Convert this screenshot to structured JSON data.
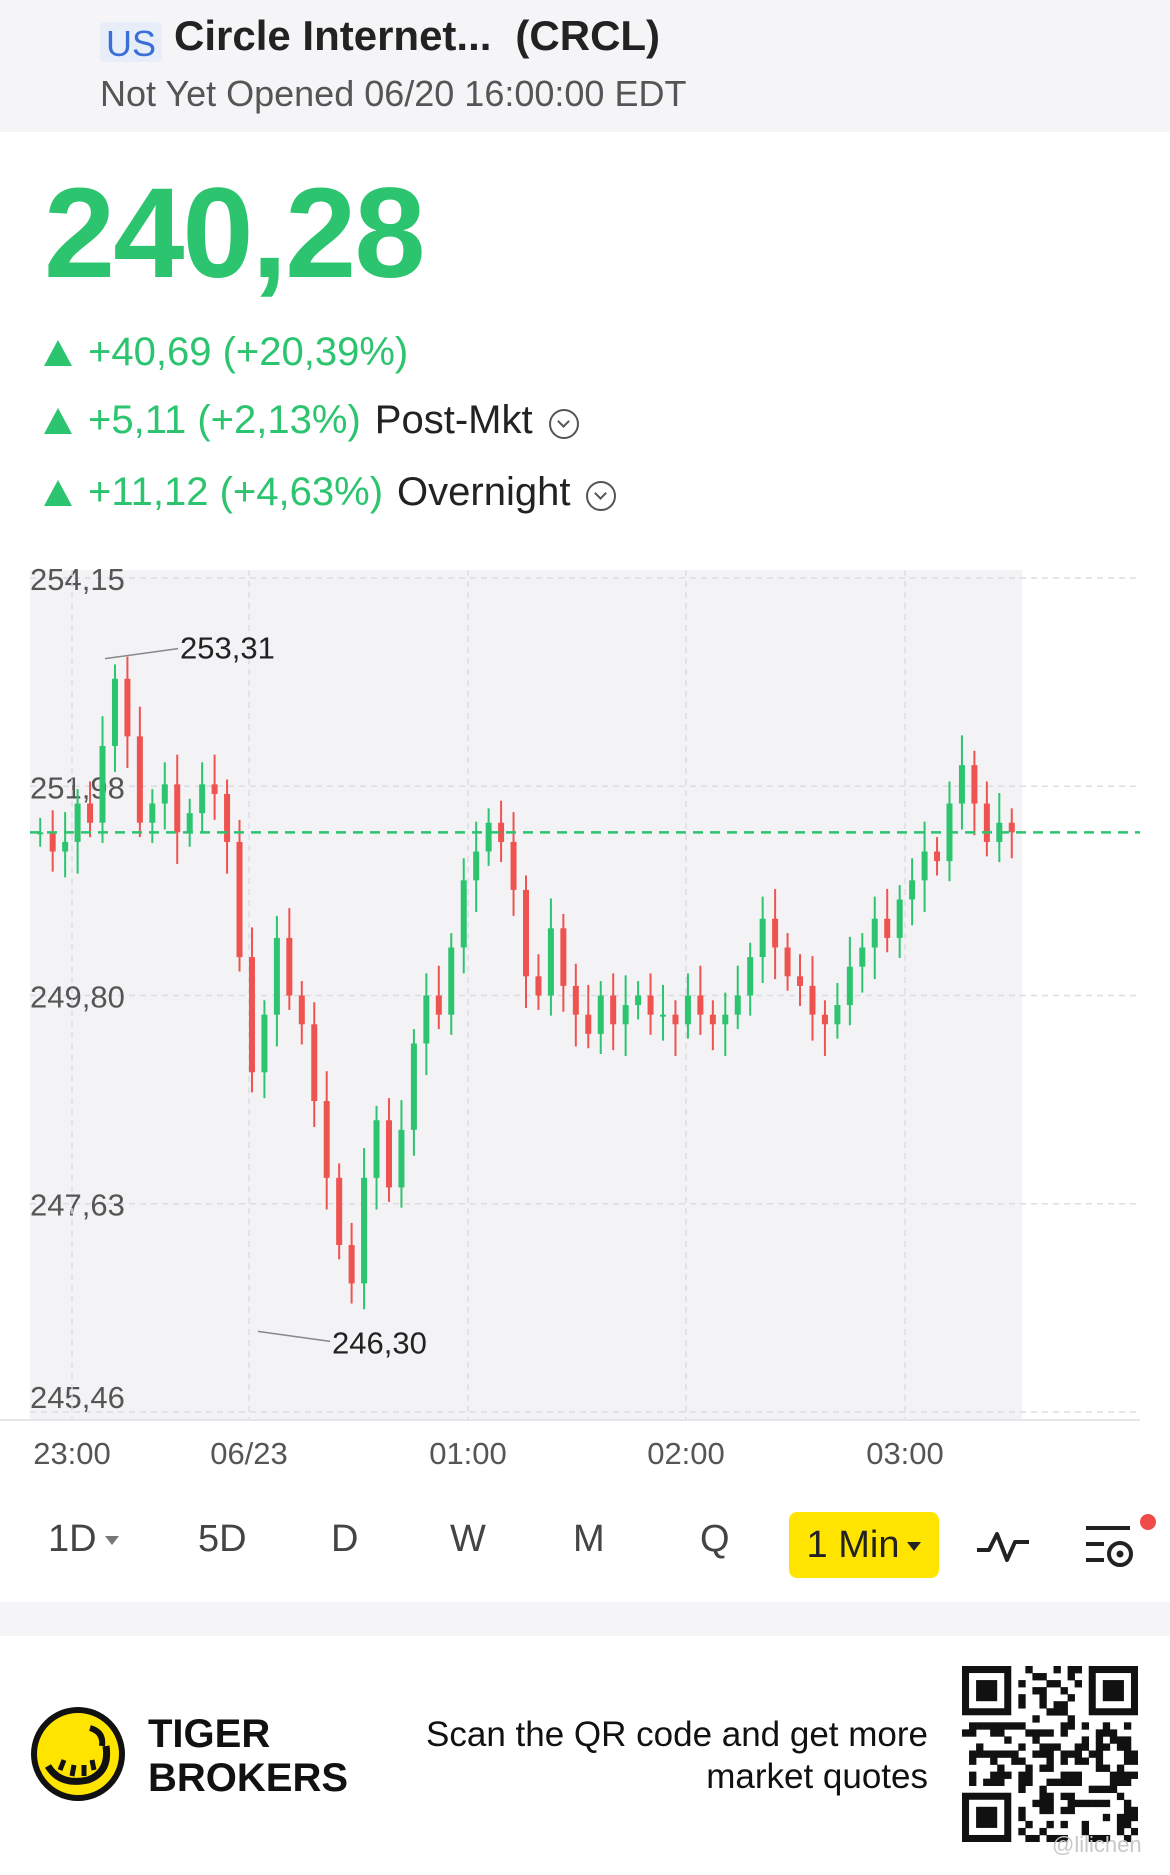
{
  "header": {
    "market": "US",
    "name": "Circle Internet...",
    "ticker": "(CRCL)",
    "status": "Not Yet Opened 06/20 16:00:00 EDT"
  },
  "quote": {
    "price": "240,28",
    "change": "+40,69 (+20,39%)",
    "post_change": "+5,11 (+2,13%)",
    "post_label": "Post-Mkt",
    "overnight_change": "+11,12 (+4,63%)",
    "overnight_label": "Overnight"
  },
  "colors": {
    "up": "#2cc46f",
    "down": "#ef5350",
    "accent": "#ffe400",
    "bg": "#f3f3f6"
  },
  "chart_data": {
    "type": "candlestick",
    "interval": "1 Min",
    "y_ticks": [
      "254,15",
      "251,98",
      "249,80",
      "247,63",
      "245,46"
    ],
    "y_tick_values": [
      254.15,
      251.98,
      249.8,
      247.63,
      245.46
    ],
    "ylim": [
      245.46,
      254.15
    ],
    "x_ticks": [
      "23:00",
      "06/23",
      "01:00",
      "02:00",
      "03:00"
    ],
    "high_label": "253,31",
    "high_value": 253.31,
    "low_label": "246,30",
    "low_value": 246.3,
    "last_price_line": 251.5,
    "grid": true,
    "series": [
      {
        "values": [
          251.5,
          251.3,
          251.4,
          251.8,
          251.6,
          252.4,
          253.1,
          252.5,
          251.6,
          251.8,
          252.0,
          251.5,
          251.7,
          252.0,
          251.9,
          251.4,
          250.2,
          249.0,
          249.6,
          250.4,
          249.8,
          249.5,
          248.7,
          247.9,
          247.2,
          246.8,
          247.9,
          248.5,
          247.8,
          248.4,
          249.3,
          249.8,
          249.6,
          250.3,
          251.0,
          251.3,
          251.6,
          251.4,
          250.9,
          250.0,
          249.8,
          250.5,
          249.9,
          249.6,
          249.4,
          249.8,
          249.5,
          249.7,
          249.8,
          249.6,
          249.6,
          249.5,
          249.8,
          249.6,
          249.5,
          249.6,
          249.8,
          250.2,
          250.6,
          250.3,
          250.0,
          249.9,
          249.6,
          249.5,
          249.7,
          250.1,
          250.3,
          250.6,
          250.4,
          250.8,
          251.0,
          251.3,
          251.2,
          251.8,
          252.2,
          251.8,
          251.4,
          251.6,
          251.5
        ]
      }
    ]
  },
  "tabs": {
    "items": [
      "1D",
      "5D",
      "D",
      "W",
      "M",
      "Q"
    ],
    "active": "1 Min"
  },
  "footer": {
    "brand_line1": "TIGER",
    "brand_line2": "BROKERS",
    "scan_line1": "Scan the QR code and get more",
    "scan_line2": "market quotes",
    "watermark": "@lilichen"
  }
}
